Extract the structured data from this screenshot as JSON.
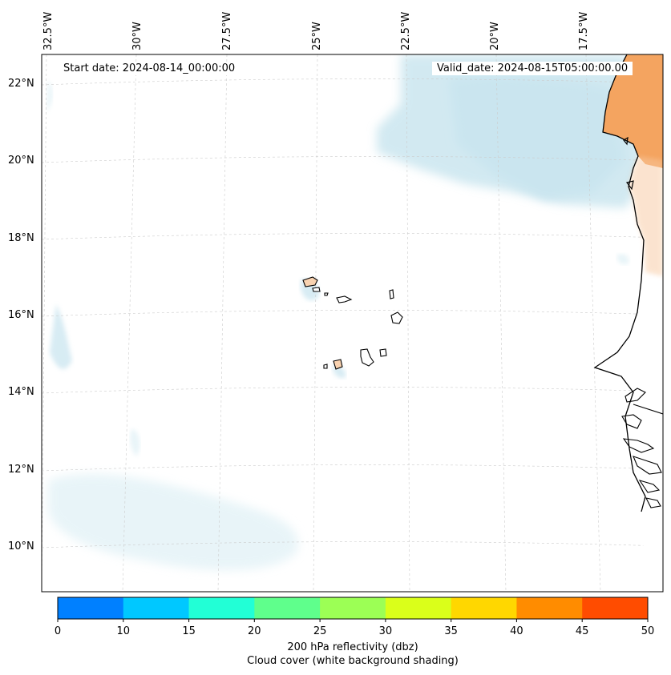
{
  "map": {
    "start_date": "Start date: 2024-08-14_00:00:00",
    "valid_date": "Valid_date: 2024-08-15T05:00:00.00",
    "longitude_labels": [
      "32.5°W",
      "30°W",
      "27.5°W",
      "25°W",
      "22.5°W",
      "20°W",
      "17.5°W"
    ],
    "latitude_labels": [
      "22°N",
      "20°N",
      "18°N",
      "16°N",
      "14°N",
      "12°N",
      "10°N"
    ],
    "region": "Cape Verde Islands and West African coast"
  },
  "colorbar": {
    "ticks": [
      "0",
      "10",
      "15",
      "20",
      "25",
      "30",
      "35",
      "40",
      "45",
      "50"
    ],
    "colors": [
      "#0080ff",
      "#00c8ff",
      "#22ffd6",
      "#5fff8c",
      "#9cff55",
      "#daff1a",
      "#ffd700",
      "#ff8c00",
      "#ff4c00"
    ],
    "label_line1": "200 hPa reflectivity (dbz)",
    "label_line2": "Cloud cover (white background shading)"
  },
  "colors": {
    "land_fill": "#f4a460",
    "cloud_shading": "#add8e6",
    "gridline": "#cccccc",
    "coastline": "#000000"
  }
}
